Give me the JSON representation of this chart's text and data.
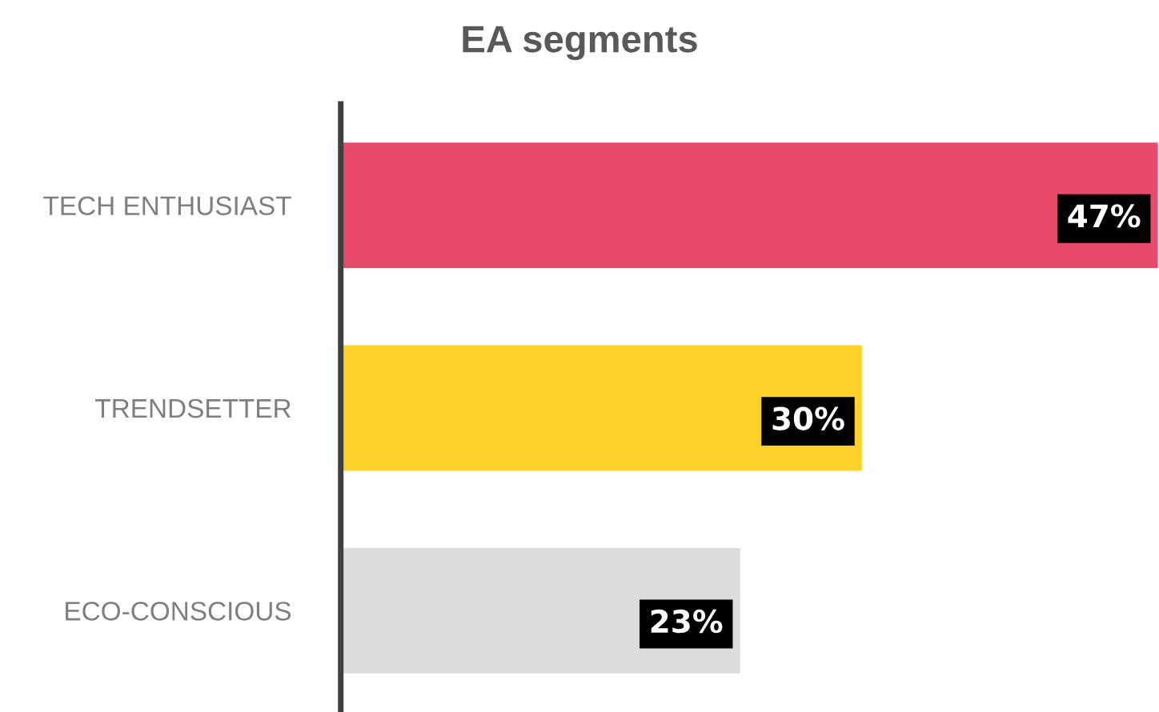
{
  "chart_data": {
    "type": "bar",
    "title": "EA segments",
    "orientation": "horizontal",
    "categories": [
      "TECH ENTHUSIAST",
      "TRENDSETTER",
      "ECO-CONSCIOUS"
    ],
    "values": [
      47,
      30,
      23
    ],
    "colors": [
      "#e84a6a",
      "#ffd12a",
      "#dcdcdc"
    ],
    "value_labels": [
      "47%",
      "30%",
      "23%"
    ],
    "grid": false,
    "legend": false
  }
}
